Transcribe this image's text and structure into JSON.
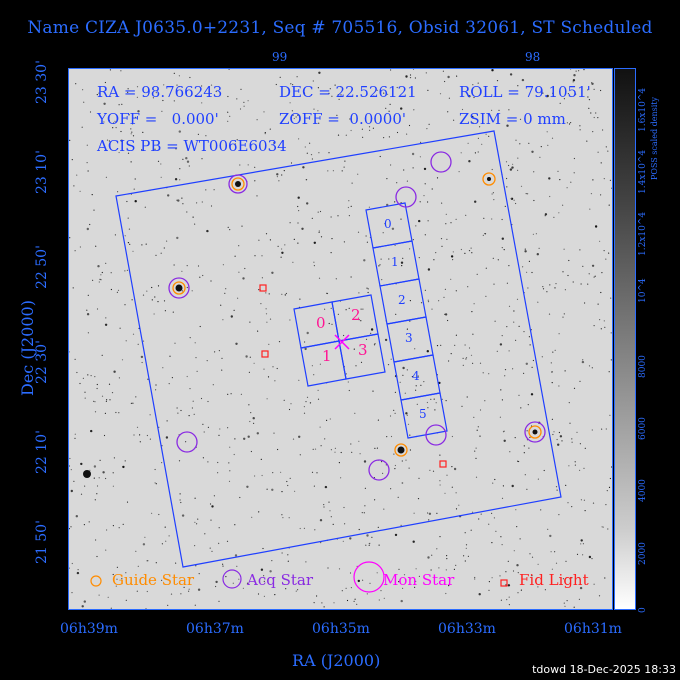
{
  "title": "Name CIZA J0635.0+2231, Seq # 705516, Obsid 32061, ST Scheduled",
  "info": {
    "ra": "RA = 98.766243",
    "dec": "DEC = 22.526121",
    "roll": "ROLL = 79.1051'",
    "yoff": "YOFF =   0.000'",
    "zoff": "ZOFF =  0.0000'",
    "zsim": "ZSIM = 0 mm",
    "acis": "ACIS PB = WT006E6034"
  },
  "axes": {
    "x_label": "RA (J2000)",
    "y_label": "Dec (J2000)",
    "x_ticks": [
      "06h39m",
      "06h37m",
      "06h35m",
      "06h33m",
      "06h31m"
    ],
    "top_ticks": [
      "99",
      "98"
    ],
    "y_ticks": [
      "23 30'",
      "23 10'",
      "22 50'",
      "22 30'",
      "22 10'",
      "21 50'"
    ]
  },
  "chips_i": [
    "0",
    "2",
    "1",
    "3"
  ],
  "chips_s": [
    "0",
    "1",
    "2",
    "3",
    "4",
    "5"
  ],
  "legend": {
    "guide": "Guide Star",
    "acq": "Acq Star",
    "mon": "Mon Star",
    "fid": "Fid Light"
  },
  "colorbar": {
    "title": "POSS scaled density",
    "ticks": [
      "0",
      "2000",
      "4000",
      "6000",
      "8000",
      "10^4",
      "1.2x10^4",
      "1.4x10^4",
      "1.6x10^4"
    ]
  },
  "footer": "tdowd 18-Dec-2025 18:33",
  "colors": {
    "blue": "#1f3fff",
    "magenta": "#ff00ff",
    "orange": "#ff8c00",
    "purple": "#8a2be2",
    "red": "#ff2020"
  }
}
